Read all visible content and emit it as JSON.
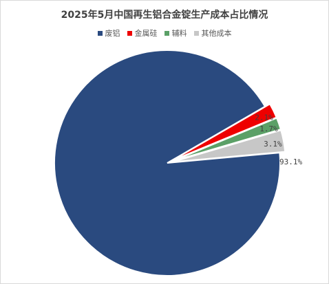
{
  "chart_data": {
    "type": "pie",
    "title": "2025年5月中国再生铝合金锭生产成本占比情况",
    "legend_position": "top",
    "categories": [
      "废铝",
      "金属硅",
      "辅料",
      "其他成本"
    ],
    "values": [
      93.1,
      2.1,
      1.7,
      3.1
    ],
    "labels": [
      "93.1%",
      "2.1%",
      "1.7%",
      "3.1%"
    ],
    "colors": [
      "#2a4a7f",
      "#ee0000",
      "#5ba067",
      "#c7c7c7"
    ]
  }
}
